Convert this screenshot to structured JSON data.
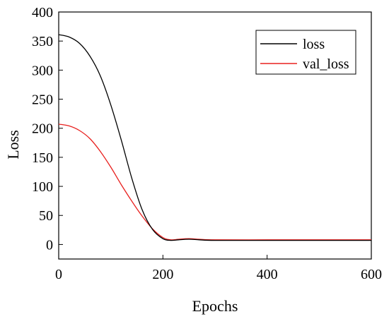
{
  "chart_data": {
    "type": "line",
    "xlabel": "Epochs",
    "ylabel": "Loss",
    "xlim": [
      0,
      600
    ],
    "ylim": [
      -25,
      400
    ],
    "xticks": [
      0,
      200,
      400,
      600
    ],
    "yticks": [
      0,
      50,
      100,
      150,
      200,
      250,
      300,
      350,
      400
    ],
    "grid": false,
    "legend": "top-right",
    "series": [
      {
        "name": "loss",
        "color": "#000000",
        "x": [
          0,
          20,
          40,
          60,
          80,
          100,
          120,
          140,
          160,
          180,
          200,
          215,
          230,
          250,
          270,
          300,
          400,
          500,
          600
        ],
        "y": [
          361,
          357,
          346,
          324,
          290,
          240,
          180,
          115,
          60,
          26,
          10,
          7,
          8,
          9,
          8,
          7,
          7,
          7,
          7
        ]
      },
      {
        "name": "val_loss",
        "color": "#e8201e",
        "x": [
          0,
          20,
          40,
          60,
          80,
          100,
          120,
          140,
          160,
          180,
          200,
          215,
          230,
          250,
          270,
          300,
          400,
          500,
          600
        ],
        "y": [
          207,
          204,
          196,
          182,
          160,
          133,
          103,
          75,
          49,
          27,
          12,
          8,
          9,
          10,
          9,
          8,
          8,
          8,
          8
        ]
      }
    ]
  }
}
